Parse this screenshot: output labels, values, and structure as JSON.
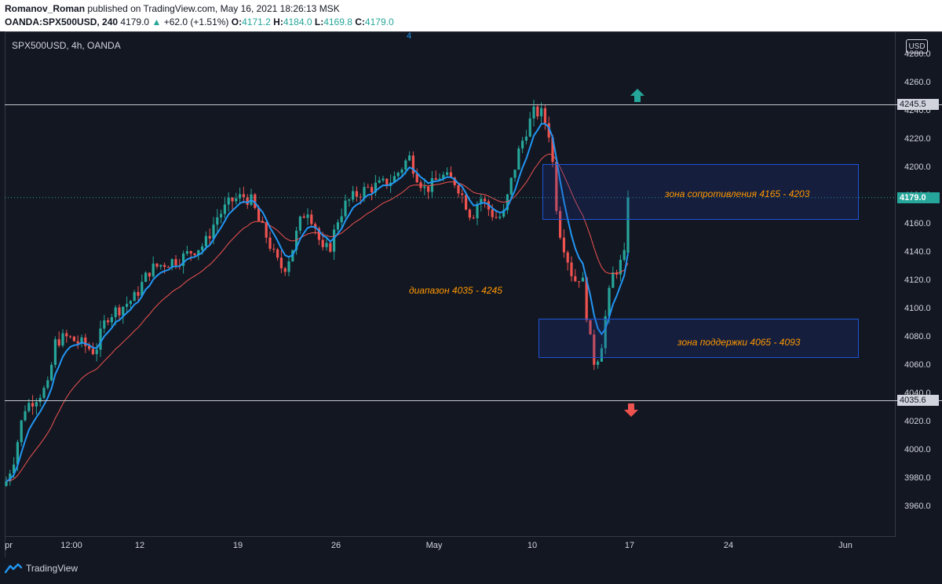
{
  "header": {
    "author": "Romanov_Roman",
    "published_text": "published on TradingView.com, May 16, 2021 18:26:13 MSK",
    "symbol_full": "OANDA:SPX500USD, 240",
    "last_price": "4179.0",
    "change": "+62.0 (+1.51%)",
    "open_label": "O:",
    "open": "4171.2",
    "high_label": "H:",
    "high": "4184.0",
    "low_label": "L:",
    "low": "4169.8",
    "close_label": "C:",
    "close": "4179.0"
  },
  "pane": {
    "title": "SPX500USD, 4h, OANDA",
    "marker_number": "4",
    "currency": "USD"
  },
  "badges": {
    "top_level": "4245.5",
    "bottom_level": "4035.6",
    "current": "4179.0"
  },
  "annotations": {
    "resistance": "зона сопротивления 4165 - 4203",
    "support": "зона поддержки 4065 - 4093",
    "range": "диапазон 4035 - 4245"
  },
  "footer": {
    "brand": "TradingView"
  },
  "colors": {
    "background": "#131722",
    "up": "#26a69a",
    "down": "#ef5350",
    "ema_fast": "#2196f3",
    "ema_slow": "#ef5350",
    "annotation": "#ff9800",
    "zone_border": "#1e54d6"
  },
  "chart_data": {
    "type": "candlestick",
    "y_ticks": [
      4280,
      4260,
      4240,
      4220,
      4200,
      4180,
      4160,
      4140,
      4120,
      4100,
      4080,
      4060,
      4040,
      4020,
      4000,
      3980,
      3960
    ],
    "y_tick_labels": [
      "4280.0",
      "4260.0",
      "4240.0",
      "4220.0",
      "4200.0",
      "4180.0",
      "4160.0",
      "4140.0",
      "4120.0",
      "4100.0",
      "4080.0",
      "4060.0",
      "4040.0",
      "4020.0",
      "4000.0",
      "3980.0",
      "3960.0"
    ],
    "x_tick_labels": [
      "pr",
      "12:00",
      "12",
      "19",
      "26",
      "May",
      "10",
      "17",
      "24",
      "Jun"
    ],
    "ylim": [
      3940,
      4292
    ],
    "horizontal_levels": [
      4245.5,
      4035.6
    ],
    "zones": [
      {
        "name": "resistance",
        "low": 4165,
        "high": 4203
      },
      {
        "name": "support",
        "low": 4065,
        "high": 4093
      }
    ],
    "price_path": [
      [
        0,
        3975
      ],
      [
        12,
        3995
      ],
      [
        25,
        4030
      ],
      [
        40,
        4038
      ],
      [
        55,
        4045
      ],
      [
        65,
        4078
      ],
      [
        80,
        4080
      ],
      [
        100,
        4075
      ],
      [
        115,
        4070
      ],
      [
        130,
        4095
      ],
      [
        150,
        4102
      ],
      [
        165,
        4108
      ],
      [
        185,
        4128
      ],
      [
        205,
        4133
      ],
      [
        225,
        4136
      ],
      [
        240,
        4142
      ],
      [
        255,
        4146
      ],
      [
        270,
        4165
      ],
      [
        290,
        4177
      ],
      [
        305,
        4180
      ],
      [
        315,
        4176
      ],
      [
        325,
        4160
      ],
      [
        335,
        4150
      ],
      [
        345,
        4135
      ],
      [
        355,
        4128
      ],
      [
        365,
        4140
      ],
      [
        375,
        4160
      ],
      [
        385,
        4172
      ],
      [
        395,
        4160
      ],
      [
        405,
        4140
      ],
      [
        415,
        4145
      ],
      [
        425,
        4165
      ],
      [
        435,
        4175
      ],
      [
        450,
        4182
      ],
      [
        465,
        4186
      ],
      [
        480,
        4188
      ],
      [
        495,
        4192
      ],
      [
        505,
        4200
      ],
      [
        515,
        4208
      ],
      [
        525,
        4195
      ],
      [
        535,
        4185
      ],
      [
        545,
        4188
      ],
      [
        555,
        4195
      ],
      [
        565,
        4192
      ],
      [
        575,
        4190
      ],
      [
        585,
        4178
      ],
      [
        595,
        4165
      ],
      [
        605,
        4180
      ],
      [
        615,
        4172
      ],
      [
        625,
        4165
      ],
      [
        635,
        4166
      ],
      [
        645,
        4190
      ],
      [
        655,
        4212
      ],
      [
        665,
        4228
      ],
      [
        675,
        4240
      ],
      [
        685,
        4238
      ],
      [
        695,
        4222
      ],
      [
        705,
        4160
      ],
      [
        715,
        4140
      ],
      [
        725,
        4120
      ],
      [
        735,
        4125
      ],
      [
        745,
        4080
      ],
      [
        752,
        4060
      ],
      [
        760,
        4075
      ],
      [
        768,
        4105
      ],
      [
        775,
        4125
      ],
      [
        782,
        4130
      ],
      [
        790,
        4138
      ],
      [
        797,
        4178
      ]
    ]
  }
}
